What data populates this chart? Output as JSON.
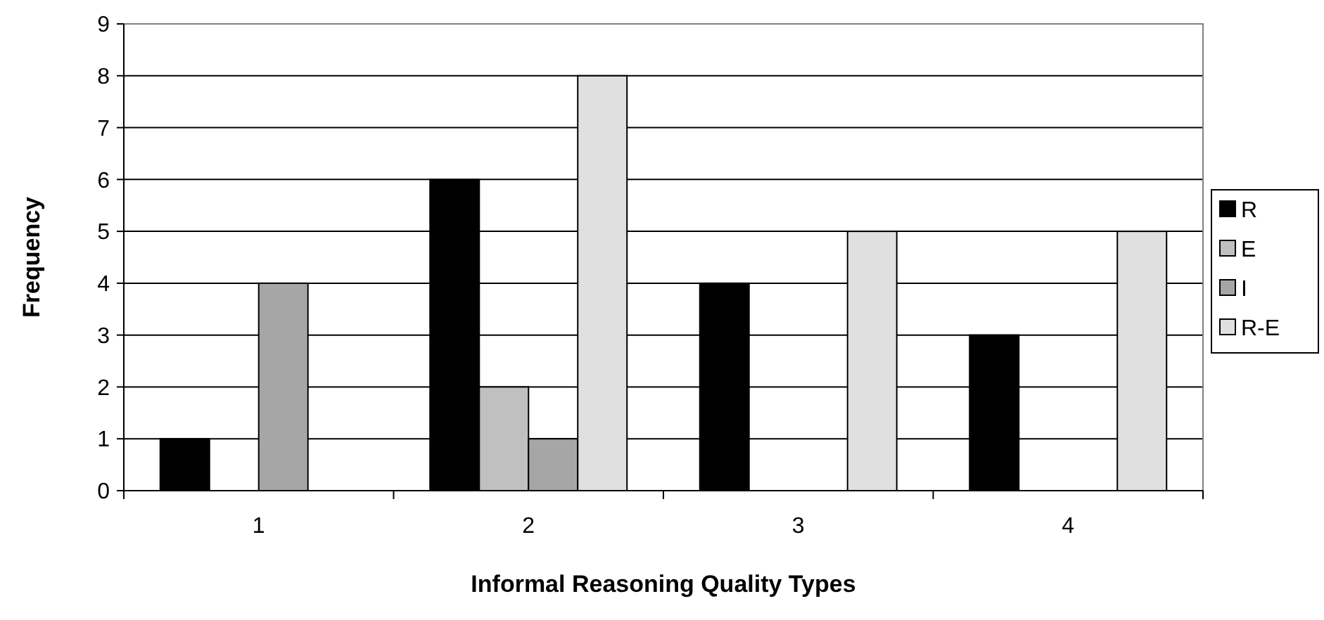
{
  "chart_data": {
    "type": "bar",
    "xlabel": "Informal Reasoning Quality Types",
    "ylabel": "Frequency",
    "categories": [
      "1",
      "2",
      "3",
      "4"
    ],
    "series": [
      {
        "name": "R",
        "color": "#000000",
        "values": [
          1,
          6,
          4,
          3
        ]
      },
      {
        "name": "E",
        "color": "#c0c0c0",
        "values": [
          0,
          2,
          0,
          0
        ]
      },
      {
        "name": "I",
        "color": "#a6a6a6",
        "values": [
          4,
          1,
          0,
          0
        ]
      },
      {
        "name": "R-E",
        "color": "#e0e0e0",
        "values": [
          0,
          8,
          5,
          5
        ]
      }
    ],
    "ylim": [
      0,
      9
    ],
    "yticks": [
      0,
      1,
      2,
      3,
      4,
      5,
      6,
      7,
      8,
      9
    ],
    "grid": "y",
    "legend": "right"
  }
}
